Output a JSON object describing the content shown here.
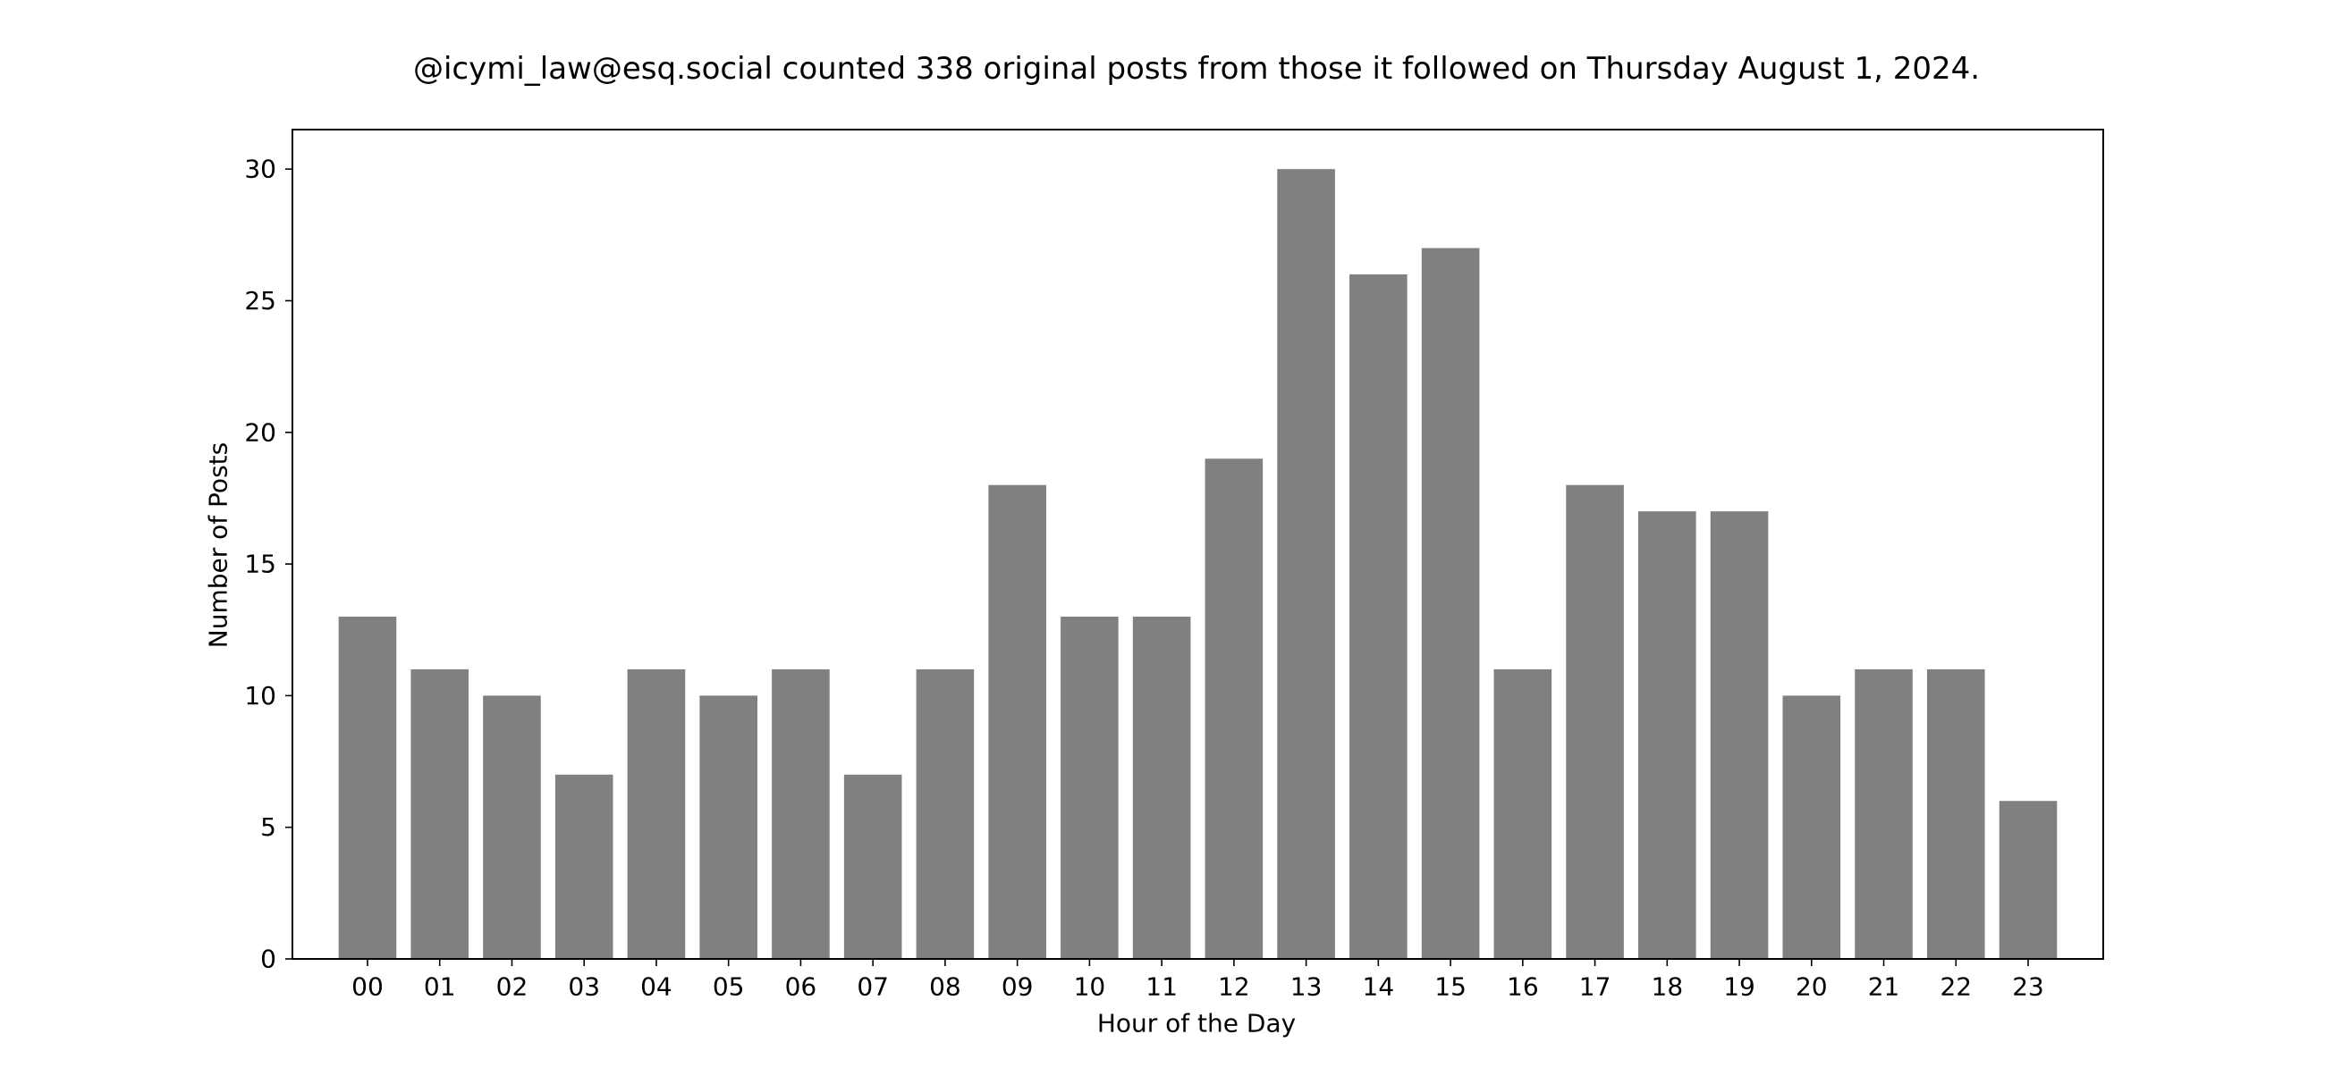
{
  "chart_data": {
    "type": "bar",
    "title": "@icymi_law@esq.social counted 338 original posts from those it followed on Thursday August 1, 2024.",
    "xlabel": "Hour of the Day",
    "ylabel": "Number of Posts",
    "categories": [
      "00",
      "01",
      "02",
      "03",
      "04",
      "05",
      "06",
      "07",
      "08",
      "09",
      "10",
      "11",
      "12",
      "13",
      "14",
      "15",
      "16",
      "17",
      "18",
      "19",
      "20",
      "21",
      "22",
      "23"
    ],
    "values": [
      13,
      11,
      10,
      7,
      11,
      10,
      11,
      7,
      11,
      18,
      13,
      13,
      19,
      30,
      26,
      27,
      11,
      18,
      17,
      17,
      10,
      11,
      11,
      6
    ],
    "ylim": [
      0,
      31.5
    ],
    "yticks": [
      0,
      5,
      10,
      15,
      20,
      25,
      30
    ],
    "bar_color": "#808080",
    "grid": false,
    "legend": "none"
  }
}
